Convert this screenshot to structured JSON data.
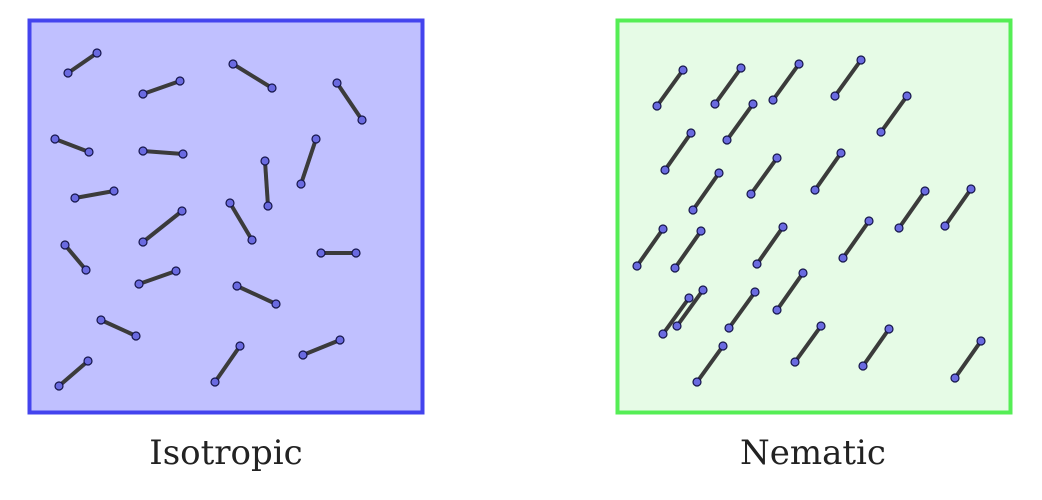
{
  "panels": [
    {
      "id": "isotropic",
      "caption": "Isotropic",
      "fill": "#c0c0ff",
      "border": "#4444ee",
      "molecules": [
        [
          68,
          73,
          97,
          53
        ],
        [
          143,
          94,
          180,
          81
        ],
        [
          233,
          64,
          272,
          88
        ],
        [
          337,
          83,
          362,
          120
        ],
        [
          55,
          139,
          89,
          152
        ],
        [
          143,
          151,
          183,
          154
        ],
        [
          265,
          161,
          268,
          206
        ],
        [
          316,
          139,
          301,
          184
        ],
        [
          75,
          198,
          114,
          191
        ],
        [
          143,
          242,
          182,
          211
        ],
        [
          230,
          203,
          252,
          240
        ],
        [
          65,
          245,
          86,
          270
        ],
        [
          139,
          284,
          176,
          271
        ],
        [
          321,
          253,
          356,
          253
        ],
        [
          237,
          286,
          276,
          304
        ],
        [
          101,
          320,
          136,
          336
        ],
        [
          59,
          386,
          88,
          361
        ],
        [
          215,
          382,
          240,
          346
        ],
        [
          303,
          355,
          340,
          340
        ]
      ]
    },
    {
      "id": "nematic",
      "caption": "Nematic",
      "fill": "#e6fbe6",
      "border": "#55ee55",
      "molecules": [
        [
          657,
          106,
          683,
          70
        ],
        [
          715,
          104,
          741,
          68
        ],
        [
          773,
          100,
          799,
          64
        ],
        [
          835,
          96,
          861,
          60
        ],
        [
          881,
          132,
          907,
          96
        ],
        [
          727,
          140,
          753,
          104
        ],
        [
          665,
          170,
          691,
          133
        ],
        [
          751,
          194,
          777,
          158
        ],
        [
          815,
          190,
          841,
          153
        ],
        [
          693,
          210,
          719,
          173
        ],
        [
          637,
          266,
          663,
          229
        ],
        [
          675,
          268,
          701,
          231
        ],
        [
          757,
          264,
          783,
          227
        ],
        [
          843,
          258,
          869,
          221
        ],
        [
          899,
          228,
          925,
          191
        ],
        [
          945,
          226,
          971,
          189
        ],
        [
          663,
          334,
          689,
          298
        ],
        [
          677,
          326,
          703,
          290
        ],
        [
          729,
          328,
          755,
          292
        ],
        [
          777,
          310,
          803,
          273
        ],
        [
          795,
          362,
          821,
          326
        ],
        [
          863,
          366,
          889,
          329
        ],
        [
          697,
          382,
          723,
          346
        ],
        [
          955,
          378,
          981,
          341
        ]
      ]
    }
  ],
  "colors": {
    "rod": "#3b3b3b",
    "bead_fill": "#6a6ae0",
    "bead_stroke": "#15154a"
  }
}
